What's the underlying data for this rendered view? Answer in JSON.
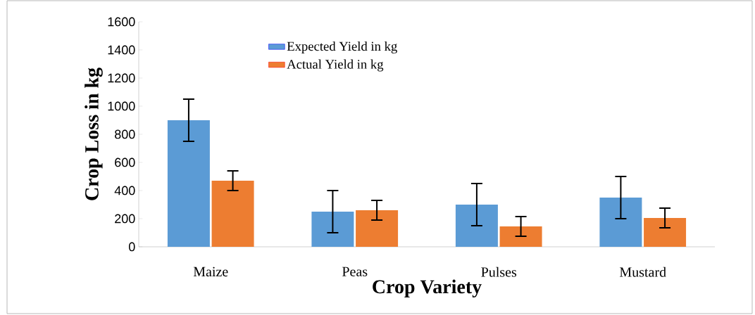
{
  "chart_data": {
    "type": "bar",
    "xlabel": "Crop Variety",
    "ylabel": "Crop Loss in kg",
    "categories": [
      "Maize",
      "Peas",
      "Pulses",
      "Mustard"
    ],
    "series": [
      {
        "name": "Expected Yield in kg",
        "color": "#5b9bd5",
        "values": [
          900,
          250,
          300,
          350
        ],
        "errors": [
          150,
          150,
          150,
          150
        ]
      },
      {
        "name": "Actual Yield in kg",
        "color": "#ed7d31",
        "values": [
          470,
          260,
          145,
          205
        ],
        "errors": [
          70,
          70,
          70,
          70
        ]
      }
    ],
    "ylim": [
      0,
      1600
    ],
    "yticks": [
      0,
      200,
      400,
      600,
      800,
      1000,
      1200,
      1400,
      1600
    ],
    "grid": false,
    "legend": "top left"
  }
}
